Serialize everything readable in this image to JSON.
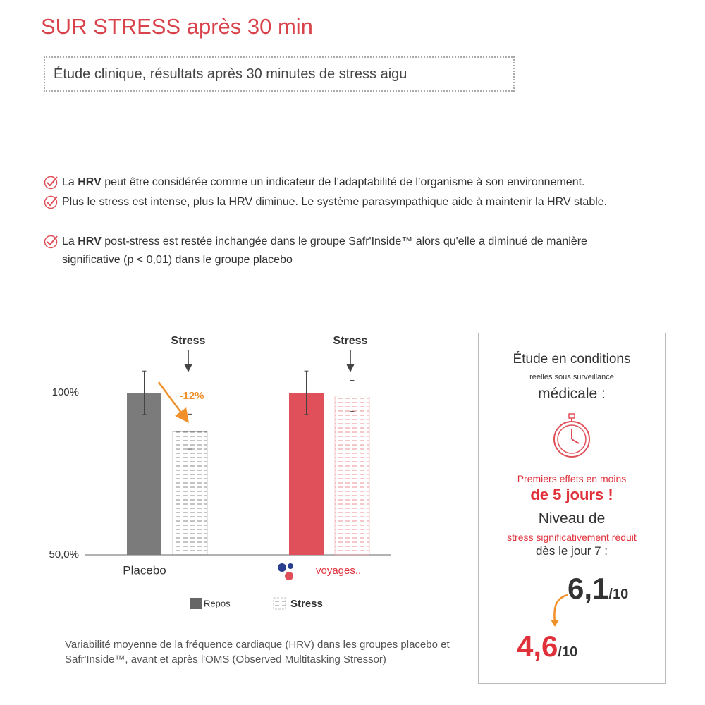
{
  "header": {
    "title": "SUR STRESS après 30 min",
    "subtitle": "Étude clinique, résultats après 30 minutes de stress aigu"
  },
  "bullets": [
    [
      "La ",
      "HRV",
      " peut être considérée comme un indicateur de l’adaptabilité de l’organisme à son environnement."
    ],
    [
      "Plus le stress est intense, plus la HRV diminue. Le système parasympathique aide à maintenir la HRV stable."
    ],
    [
      "La ",
      "HRV",
      " post-stress est restée inchangée dans le groupe Safr'Inside™ alors qu'elle a diminué de manière significative (p < 0,01) dans le groupe placebo"
    ]
  ],
  "chart_data": {
    "type": "bar",
    "categories": [
      "Placebo",
      "voyages.."
    ],
    "series": [
      {
        "name": "Repos",
        "color": "#666666",
        "colors": [
          "#7b7b7b",
          "#e0505a"
        ],
        "values": [
          100,
          100
        ],
        "errors": [
          6.7,
          6.7
        ]
      },
      {
        "name": "Stress",
        "color": "#888888",
        "colors": [
          "#8a8a8a",
          "#ec8f95"
        ],
        "values": [
          88,
          99
        ],
        "errors": [
          5.4,
          4.8
        ]
      }
    ],
    "ylim": [
      50,
      110
    ],
    "yticks": [
      {
        "value": 50,
        "label": "50,0%"
      },
      {
        "value": 100,
        "label": "100%"
      }
    ],
    "annotations": [
      "Stress",
      "Stress",
      "-12%"
    ]
  },
  "caption": "Variabilité moyenne de la fréquence cardiaque (HRV) dans les groupes placebo et Safr'Inside™, avant et après l'OMS (Observed Multitasking Stressor)",
  "panel": {
    "line1": "Étude en conditions",
    "line2": "réelles sous surveillance",
    "line3": "médicale :",
    "effects1": "Premiers effets en moins",
    "effects2": "de 5 jours !",
    "level1": "Niveau de",
    "level2": "stress significativement réduit",
    "level3": "dès le jour 7 :",
    "score_before": "6,1",
    "score_after": "4,6",
    "score_unit": "/10"
  }
}
